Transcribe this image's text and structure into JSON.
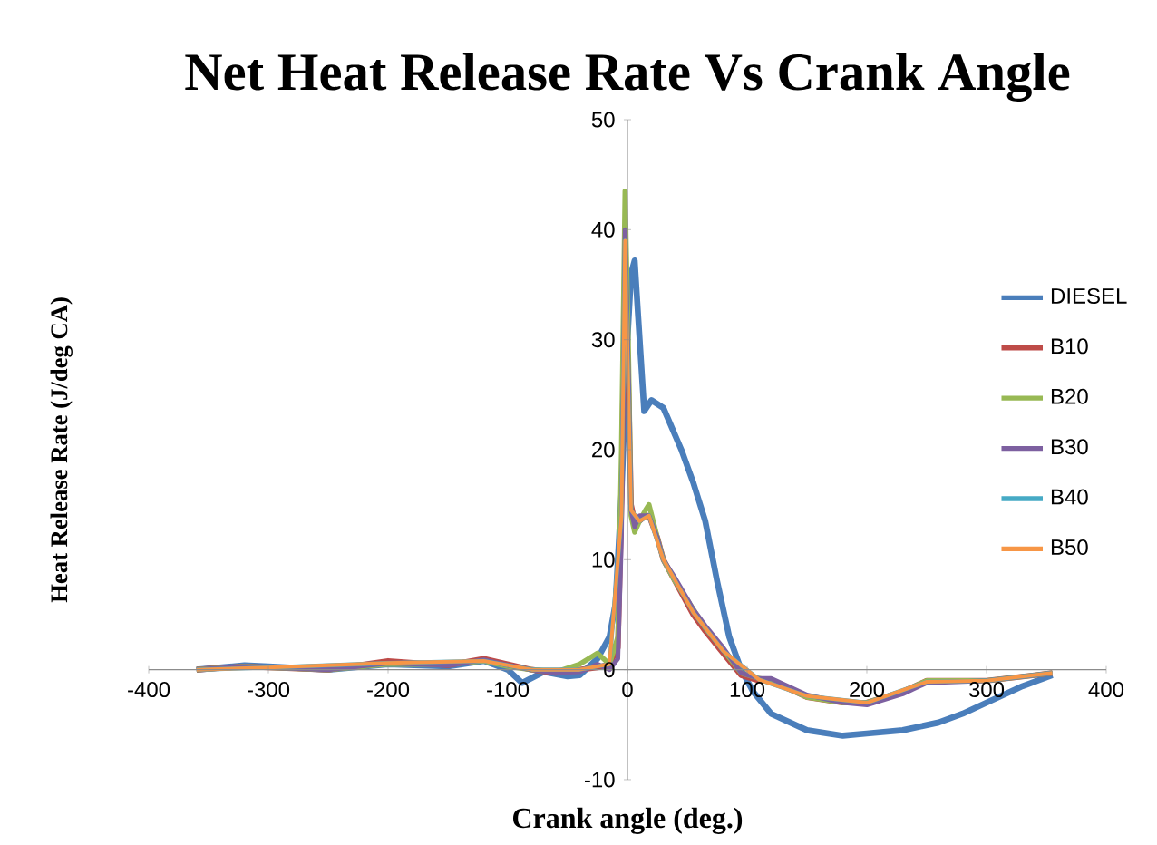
{
  "chart_data": {
    "type": "line",
    "title": "Net Heat Release Rate Vs Crank Angle",
    "xlabel": "Crank angle (deg.)",
    "ylabel": "Heat  Release Rate (J/deg CA)",
    "xlim": [
      -400,
      400
    ],
    "ylim": [
      -10,
      50
    ],
    "xticks": [
      -400,
      -300,
      -200,
      -100,
      0,
      100,
      200,
      300,
      400
    ],
    "yticks": [
      -10,
      0,
      10,
      20,
      30,
      40,
      50
    ],
    "grid": false,
    "legend": "right",
    "marker": "none",
    "line_style": "solid",
    "series": [
      {
        "name": "DIESEL",
        "color": "#4a7ebb",
        "x": [
          -360,
          -320,
          -300,
          -250,
          -200,
          -150,
          -120,
          -100,
          -88,
          -70,
          -50,
          -40,
          -25,
          -15,
          -10,
          -5,
          0,
          3,
          6,
          9,
          14,
          20,
          30,
          45,
          55,
          65,
          75,
          85,
          95,
          105,
          120,
          150,
          180,
          200,
          230,
          260,
          280,
          300,
          330,
          355
        ],
        "values": [
          0,
          0.4,
          0.3,
          0,
          0.5,
          0.3,
          0.8,
          0,
          -1.2,
          -0.2,
          -0.6,
          -0.5,
          1,
          3,
          6,
          16,
          30,
          36,
          37.2,
          32,
          23.5,
          24.5,
          23.8,
          20,
          17,
          13.5,
          8,
          3,
          0,
          -2,
          -4,
          -5.5,
          -6,
          -5.8,
          -5.5,
          -4.8,
          -4,
          -3,
          -1.5,
          -0.5
        ]
      },
      {
        "name": "B10",
        "color": "#be4b48",
        "x": [
          -360,
          -320,
          -300,
          -250,
          -200,
          -150,
          -120,
          -100,
          -80,
          -60,
          -40,
          -25,
          -15,
          -8,
          -5,
          -2,
          1,
          3,
          6,
          10,
          15,
          18,
          25,
          30,
          40,
          55,
          65,
          80,
          95,
          110,
          120,
          150,
          180,
          200,
          230,
          250,
          300,
          340,
          355
        ],
        "values": [
          0,
          0.3,
          0.2,
          0,
          0.8,
          0.4,
          1,
          0.5,
          0,
          -0.3,
          0,
          0.2,
          0.5,
          2,
          15,
          38,
          25,
          15,
          13.5,
          13.5,
          14,
          14,
          12,
          10,
          8,
          5,
          3.5,
          1.5,
          -0.5,
          -1,
          -1,
          -2.5,
          -3,
          -3,
          -2,
          -1,
          -1,
          -0.5,
          -0.3
        ]
      },
      {
        "name": "B20",
        "color": "#98b954",
        "x": [
          -360,
          -320,
          -300,
          -250,
          -200,
          -150,
          -120,
          -100,
          -80,
          -60,
          -40,
          -25,
          -15,
          -8,
          -5,
          -2,
          1,
          3,
          6,
          10,
          15,
          18,
          25,
          30,
          40,
          55,
          65,
          80,
          95,
          110,
          120,
          150,
          180,
          200,
          230,
          250,
          300,
          340,
          355
        ],
        "values": [
          0,
          0.3,
          0.2,
          0,
          0.5,
          0.5,
          0.8,
          0.3,
          0,
          -0.2,
          0.5,
          1.5,
          0.5,
          3,
          20,
          43.5,
          28,
          14,
          12.5,
          13.5,
          14.5,
          15,
          12,
          10,
          8,
          5.5,
          3.8,
          1.8,
          -0.3,
          -0.8,
          -1,
          -2.5,
          -3,
          -3,
          -2,
          -1,
          -1,
          -0.5,
          -0.3
        ]
      },
      {
        "name": "B30",
        "color": "#7d60a0",
        "x": [
          -360,
          -320,
          -300,
          -250,
          -200,
          -150,
          -120,
          -100,
          -80,
          -60,
          -40,
          -25,
          -15,
          -8,
          -5,
          -2,
          1,
          3,
          6,
          10,
          15,
          18,
          25,
          30,
          40,
          55,
          65,
          80,
          95,
          110,
          120,
          150,
          180,
          200,
          230,
          250,
          300,
          340,
          355
        ],
        "values": [
          0,
          0.3,
          0.2,
          0,
          0.6,
          0.4,
          0.9,
          0.4,
          0,
          -0.3,
          -0.2,
          0.5,
          0,
          1,
          12,
          40,
          26,
          14.5,
          13,
          14,
          14,
          14,
          12,
          10,
          8.3,
          5.5,
          4,
          2,
          -0.3,
          -0.8,
          -0.8,
          -2.3,
          -3,
          -3.2,
          -2.2,
          -1.2,
          -1,
          -0.5,
          -0.3
        ]
      },
      {
        "name": "B40",
        "color": "#46aac5",
        "x": [
          -360,
          -300,
          -200,
          -120,
          -80,
          -40,
          -15,
          -5,
          -2,
          3,
          10,
          18,
          30,
          55,
          80,
          110,
          150,
          200,
          250,
          300,
          355
        ],
        "values": [
          0,
          0.2,
          0.6,
          0.8,
          0,
          0,
          0.5,
          14,
          39,
          14.5,
          13.5,
          14,
          10,
          5.2,
          1.7,
          -0.9,
          -2.4,
          -3,
          -1.1,
          -1,
          -0.3
        ]
      },
      {
        "name": "B50",
        "color": "#f79646",
        "x": [
          -360,
          -300,
          -200,
          -120,
          -80,
          -40,
          -15,
          -5,
          -2,
          3,
          10,
          18,
          30,
          55,
          80,
          110,
          150,
          200,
          250,
          300,
          355
        ],
        "values": [
          0,
          0.2,
          0.6,
          0.8,
          0,
          0,
          0.5,
          14,
          39,
          14.5,
          13.5,
          14,
          10,
          5.2,
          1.7,
          -0.9,
          -2.4,
          -3,
          -1.1,
          -1,
          -0.3
        ]
      }
    ]
  }
}
